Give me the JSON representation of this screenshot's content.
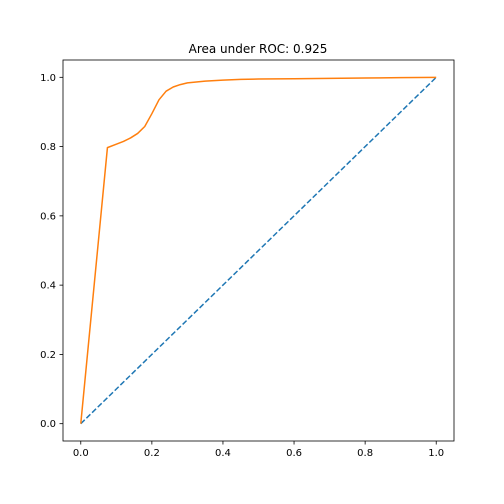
{
  "chart_data": {
    "type": "line",
    "title": "Area under ROC: 0.925",
    "xlabel": "",
    "ylabel": "",
    "xlim": [
      -0.05,
      1.05
    ],
    "ylim": [
      -0.05,
      1.05
    ],
    "x_ticks": [
      0.0,
      0.2,
      0.4,
      0.6,
      0.8,
      1.0
    ],
    "x_tick_labels": [
      "0.0",
      "0.2",
      "0.4",
      "0.6",
      "0.8",
      "1.0"
    ],
    "y_ticks": [
      0.0,
      0.2,
      0.4,
      0.6,
      0.8,
      1.0
    ],
    "y_tick_labels": [
      "0.0",
      "0.2",
      "0.4",
      "0.6",
      "0.8",
      "1.0"
    ],
    "grid": false,
    "legend": false,
    "series": [
      {
        "style": "dashed",
        "color": "#1f77b4",
        "x": [
          0.0,
          1.0
        ],
        "y": [
          0.0,
          1.0
        ]
      },
      {
        "style": "solid",
        "color": "#ff7f0e",
        "x": [
          0.0,
          0.075,
          0.1,
          0.12,
          0.14,
          0.16,
          0.18,
          0.2,
          0.22,
          0.24,
          0.26,
          0.28,
          0.3,
          0.35,
          0.4,
          0.45,
          0.5,
          0.6,
          0.7,
          0.8,
          0.9,
          1.0
        ],
        "y": [
          0.0,
          0.797,
          0.807,
          0.815,
          0.825,
          0.838,
          0.858,
          0.895,
          0.935,
          0.96,
          0.972,
          0.979,
          0.984,
          0.989,
          0.992,
          0.994,
          0.995,
          0.996,
          0.997,
          0.998,
          0.999,
          1.0
        ]
      }
    ]
  }
}
